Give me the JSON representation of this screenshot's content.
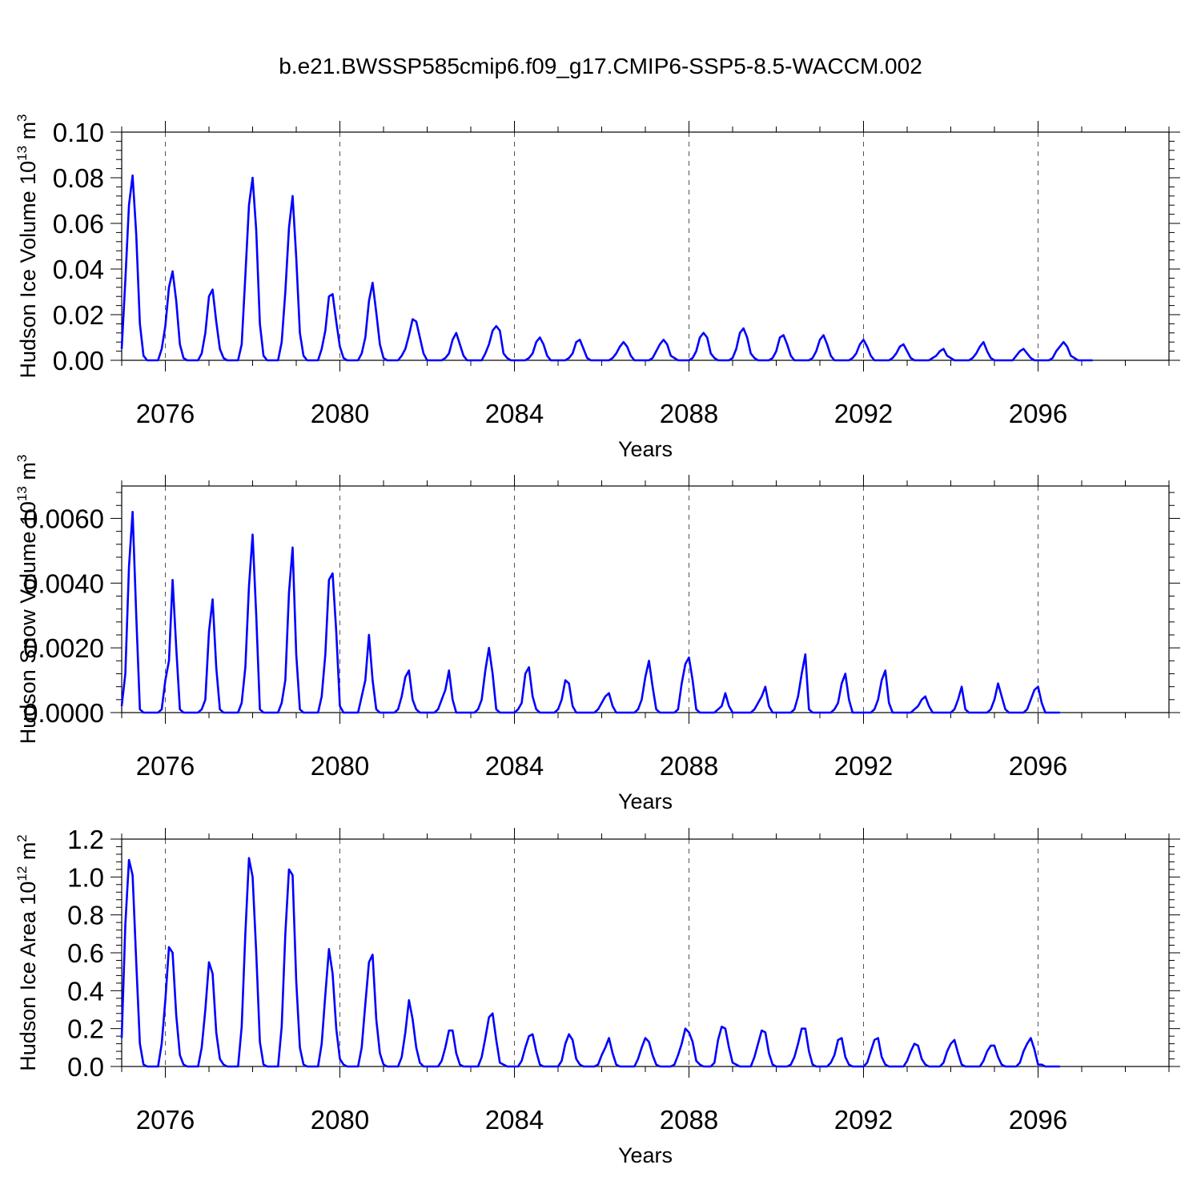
{
  "figure_title": "b.e21.BWSSP585cmip6.f09_g17.CMIP6-SSP5-8.5-WACCM.002",
  "colors": {
    "line": "#0000ff",
    "axis": "#000000",
    "grid": "#555555",
    "background": "#ffffff"
  },
  "chart_data": [
    {
      "type": "line",
      "xlabel": "Years",
      "ylabel": {
        "text": "Hudson Ice Volume 10",
        "exponent": "13",
        "unit": " m",
        "unit_exponent": "3"
      },
      "xlim": [
        2075.0,
        2099.0
      ],
      "ylim": [
        0.0,
        0.1
      ],
      "x_ticks": [
        2076,
        2080,
        2084,
        2088,
        2092,
        2096
      ],
      "x_tick_labels": [
        "2076",
        "2080",
        "2084",
        "2088",
        "2092",
        "2096"
      ],
      "y_ticks": [
        0.0,
        0.02,
        0.04,
        0.06,
        0.08,
        0.1
      ],
      "y_tick_labels": [
        "0.00",
        "0.02",
        "0.04",
        "0.06",
        "0.08",
        "0.10"
      ],
      "grid": "vertical dashed at major x ticks",
      "series": [
        {
          "name": "Hudson Ice Volume",
          "x_start": 2075.0,
          "x_step": 0.083333,
          "values": [
            0.005,
            0.035,
            0.068,
            0.081,
            0.055,
            0.016,
            0.002,
            0,
            0,
            0,
            0,
            0.005,
            0.015,
            0.032,
            0.039,
            0.026,
            0.007,
            0.001,
            0,
            0,
            0,
            0,
            0.003,
            0.012,
            0.028,
            0.031,
            0.017,
            0.005,
            0.001,
            0,
            0,
            0,
            0,
            0.007,
            0.037,
            0.068,
            0.08,
            0.057,
            0.016,
            0.002,
            0,
            0,
            0,
            0,
            0.008,
            0.03,
            0.058,
            0.072,
            0.045,
            0.012,
            0.002,
            0,
            0,
            0,
            0,
            0.005,
            0.013,
            0.028,
            0.029,
            0.017,
            0.006,
            0.001,
            0,
            0,
            0,
            0,
            0.003,
            0.01,
            0.026,
            0.034,
            0.021,
            0.007,
            0.001,
            0,
            0,
            0,
            0,
            0.002,
            0.005,
            0.011,
            0.018,
            0.017,
            0.01,
            0.003,
            0,
            0,
            0,
            0,
            0,
            0.001,
            0.003,
            0.009,
            0.012,
            0.007,
            0.002,
            0,
            0,
            0,
            0,
            0,
            0.003,
            0.007,
            0.013,
            0.015,
            0.013,
            0.003,
            0.001,
            0,
            0,
            0,
            0,
            0,
            0.001,
            0.003,
            0.008,
            0.01,
            0.007,
            0.002,
            0,
            0,
            0,
            0,
            0,
            0.001,
            0.003,
            0.008,
            0.009,
            0.005,
            0.001,
            0,
            0,
            0,
            0,
            0,
            0,
            0.001,
            0.003,
            0.006,
            0.008,
            0.006,
            0.002,
            0,
            0,
            0,
            0,
            0,
            0.001,
            0.004,
            0.007,
            0.009,
            0.007,
            0.002,
            0.001,
            0,
            0,
            0,
            0,
            0.001,
            0.004,
            0.01,
            0.012,
            0.01,
            0.003,
            0.001,
            0,
            0,
            0,
            0,
            0.001,
            0.005,
            0.012,
            0.014,
            0.01,
            0.003,
            0.001,
            0,
            0,
            0,
            0,
            0.001,
            0.004,
            0.01,
            0.011,
            0.007,
            0.002,
            0,
            0,
            0,
            0,
            0,
            0.001,
            0.004,
            0.009,
            0.011,
            0.007,
            0.002,
            0,
            0,
            0,
            0,
            0,
            0.001,
            0.003,
            0.007,
            0.009,
            0.006,
            0.002,
            0,
            0,
            0,
            0,
            0,
            0.001,
            0.003,
            0.006,
            0.007,
            0.004,
            0.001,
            0,
            0,
            0,
            0,
            0,
            0.001,
            0.002,
            0.004,
            0.005,
            0.002,
            0.001,
            0,
            0,
            0,
            0,
            0,
            0.001,
            0.003,
            0.006,
            0.008,
            0.004,
            0.001,
            0,
            0,
            0,
            0,
            0,
            0,
            0.002,
            0.004,
            0.005,
            0.003,
            0.001,
            0,
            0,
            0,
            0,
            0,
            0.001,
            0.004,
            0.006,
            0.008,
            0.006,
            0.002,
            0.001,
            0,
            0,
            0,
            0,
            0
          ]
        }
      ]
    },
    {
      "type": "line",
      "xlabel": "Years",
      "ylabel": {
        "text": "Hudson Snow Volume 10",
        "exponent": "13",
        "unit": " m",
        "unit_exponent": "3"
      },
      "xlim": [
        2075.0,
        2099.0
      ],
      "ylim": [
        0.0,
        0.007
      ],
      "x_ticks": [
        2076,
        2080,
        2084,
        2088,
        2092,
        2096
      ],
      "x_tick_labels": [
        "2076",
        "2080",
        "2084",
        "2088",
        "2092",
        "2096"
      ],
      "y_ticks": [
        0.0,
        0.002,
        0.004,
        0.006
      ],
      "y_tick_labels": [
        "0.0000",
        "0.0020",
        "0.0040",
        "0.0060"
      ],
      "grid": "vertical dashed at major x ticks",
      "series": [
        {
          "name": "Hudson Snow Volume",
          "x_start": 2075.0,
          "x_step": 0.083333,
          "values": [
            0.0002,
            0.0012,
            0.0045,
            0.0062,
            0.003,
            0.0001,
            0,
            0,
            0,
            0,
            0,
            0.0001,
            0.001,
            0.0016,
            0.0041,
            0.002,
            0.0001,
            0,
            0,
            0,
            0,
            0,
            0.0001,
            0.0004,
            0.0025,
            0.0035,
            0.0014,
            0.0001,
            0,
            0,
            0,
            0,
            0,
            0.0003,
            0.0014,
            0.0039,
            0.0055,
            0.003,
            0.0001,
            0,
            0,
            0,
            0,
            0,
            0.0003,
            0.001,
            0.0037,
            0.0051,
            0.0018,
            0.0001,
            0,
            0,
            0,
            0,
            0,
            0.0005,
            0.0018,
            0.0041,
            0.0043,
            0.0025,
            0.0002,
            0,
            0,
            0,
            0,
            0,
            0.0005,
            0.001,
            0.0024,
            0.001,
            0.0001,
            0,
            0,
            0,
            0,
            0,
            0.0001,
            0.0005,
            0.0011,
            0.0013,
            0.0004,
            0.0001,
            0,
            0,
            0,
            0,
            0,
            0.0001,
            0.0004,
            0.0007,
            0.0013,
            0.0004,
            0,
            0,
            0,
            0,
            0,
            0,
            0.0001,
            0.0004,
            0.0013,
            0.002,
            0.0012,
            0.0001,
            0,
            0,
            0,
            0,
            0,
            0.0001,
            0.0003,
            0.0012,
            0.0014,
            0.0005,
            0.0001,
            0,
            0,
            0,
            0,
            0,
            0.0001,
            0.0004,
            0.001,
            0.0009,
            0.0002,
            0,
            0,
            0,
            0,
            0,
            0,
            0.0001,
            0.0003,
            0.0005,
            0.0006,
            0.0002,
            0,
            0,
            0,
            0,
            0,
            0,
            0.0001,
            0.0004,
            0.0011,
            0.0016,
            0.0008,
            0.0001,
            0,
            0,
            0,
            0,
            0,
            0.0001,
            0.0009,
            0.0015,
            0.0017,
            0.001,
            0.0001,
            0,
            0,
            0,
            0,
            0,
            0.0001,
            0.0002,
            0.0006,
            0.0002,
            0,
            0,
            0,
            0,
            0,
            0,
            0.0001,
            0.0003,
            0.0005,
            0.0008,
            0.0002,
            0,
            0,
            0,
            0,
            0,
            0,
            0.0001,
            0.0005,
            0.0012,
            0.0018,
            0.0001,
            0,
            0,
            0,
            0,
            0,
            0,
            0.0001,
            0.0003,
            0.0009,
            0.0012,
            0.0004,
            0,
            0,
            0,
            0,
            0,
            0,
            0.0001,
            0.0004,
            0.001,
            0.0013,
            0.0003,
            0,
            0,
            0,
            0,
            0,
            0,
            0.0001,
            0.0002,
            0.0004,
            0.0005,
            0.0002,
            0,
            0,
            0,
            0,
            0,
            0,
            0.0001,
            0.0004,
            0.0008,
            0.0001,
            0,
            0,
            0,
            0,
            0,
            0,
            0.0001,
            0.0004,
            0.0009,
            0.0005,
            0.0001,
            0,
            0,
            0,
            0,
            0,
            0.0001,
            0.0004,
            0.0007,
            0.0008,
            0.0003,
            0,
            0,
            0,
            0,
            0
          ]
        }
      ]
    },
    {
      "type": "line",
      "xlabel": "Years",
      "ylabel": {
        "text": "Hudson Ice Area 10",
        "exponent": "12",
        "unit": " m",
        "unit_exponent": "2"
      },
      "xlim": [
        2075.0,
        2099.0
      ],
      "ylim": [
        0.0,
        1.2
      ],
      "x_ticks": [
        2076,
        2080,
        2084,
        2088,
        2092,
        2096
      ],
      "x_tick_labels": [
        "2076",
        "2080",
        "2084",
        "2088",
        "2092",
        "2096"
      ],
      "y_ticks": [
        0.0,
        0.2,
        0.4,
        0.6,
        0.8,
        1.0,
        1.2
      ],
      "y_tick_labels": [
        "0.0",
        "0.2",
        "0.4",
        "0.6",
        "0.8",
        "1.0",
        "1.2"
      ],
      "grid": "vertical dashed at major x ticks",
      "series": [
        {
          "name": "Hudson Ice Area",
          "x_start": 2075.0,
          "x_step": 0.083333,
          "values": [
            0.15,
            0.75,
            1.09,
            1.01,
            0.55,
            0.12,
            0.01,
            0,
            0,
            0,
            0,
            0.12,
            0.35,
            0.63,
            0.6,
            0.27,
            0.06,
            0.01,
            0,
            0,
            0,
            0,
            0.1,
            0.3,
            0.55,
            0.49,
            0.18,
            0.04,
            0.01,
            0,
            0,
            0,
            0,
            0.21,
            0.7,
            1.1,
            1.0,
            0.6,
            0.13,
            0.01,
            0,
            0,
            0,
            0,
            0.21,
            0.7,
            1.04,
            1.01,
            0.45,
            0.1,
            0.01,
            0,
            0,
            0,
            0,
            0.12,
            0.38,
            0.62,
            0.49,
            0.2,
            0.04,
            0.01,
            0,
            0,
            0,
            0,
            0.1,
            0.33,
            0.55,
            0.59,
            0.25,
            0.07,
            0.01,
            0,
            0,
            0,
            0,
            0.05,
            0.18,
            0.35,
            0.25,
            0.1,
            0.02,
            0,
            0,
            0,
            0,
            0,
            0.03,
            0.1,
            0.19,
            0.19,
            0.07,
            0.01,
            0,
            0,
            0,
            0,
            0,
            0.05,
            0.15,
            0.26,
            0.28,
            0.14,
            0.02,
            0.01,
            0,
            0,
            0,
            0,
            0.03,
            0.1,
            0.16,
            0.17,
            0.08,
            0.01,
            0,
            0,
            0,
            0,
            0,
            0.03,
            0.12,
            0.17,
            0.14,
            0.04,
            0.01,
            0,
            0,
            0,
            0,
            0.01,
            0.06,
            0.1,
            0.15,
            0.07,
            0.01,
            0,
            0,
            0,
            0,
            0,
            0.04,
            0.1,
            0.15,
            0.13,
            0.06,
            0.01,
            0,
            0,
            0,
            0,
            0.01,
            0.06,
            0.12,
            0.2,
            0.18,
            0.13,
            0.03,
            0.01,
            0,
            0,
            0,
            0.02,
            0.14,
            0.21,
            0.2,
            0.1,
            0.02,
            0.01,
            0,
            0,
            0,
            0,
            0.05,
            0.12,
            0.19,
            0.18,
            0.07,
            0.01,
            0,
            0,
            0,
            0,
            0.01,
            0.05,
            0.12,
            0.2,
            0.2,
            0.08,
            0.01,
            0,
            0,
            0,
            0,
            0.02,
            0.06,
            0.14,
            0.15,
            0.05,
            0.01,
            0,
            0,
            0,
            0,
            0.02,
            0.08,
            0.14,
            0.15,
            0.05,
            0.01,
            0,
            0,
            0,
            0,
            0,
            0.03,
            0.08,
            0.12,
            0.11,
            0.04,
            0.01,
            0,
            0,
            0,
            0,
            0.02,
            0.08,
            0.12,
            0.14,
            0.07,
            0.01,
            0,
            0,
            0,
            0,
            0,
            0.03,
            0.08,
            0.11,
            0.11,
            0.05,
            0.01,
            0,
            0,
            0,
            0,
            0.02,
            0.08,
            0.12,
            0.15,
            0.09,
            0.01,
            0.01,
            0,
            0,
            0,
            0,
            0
          ]
        }
      ]
    }
  ]
}
